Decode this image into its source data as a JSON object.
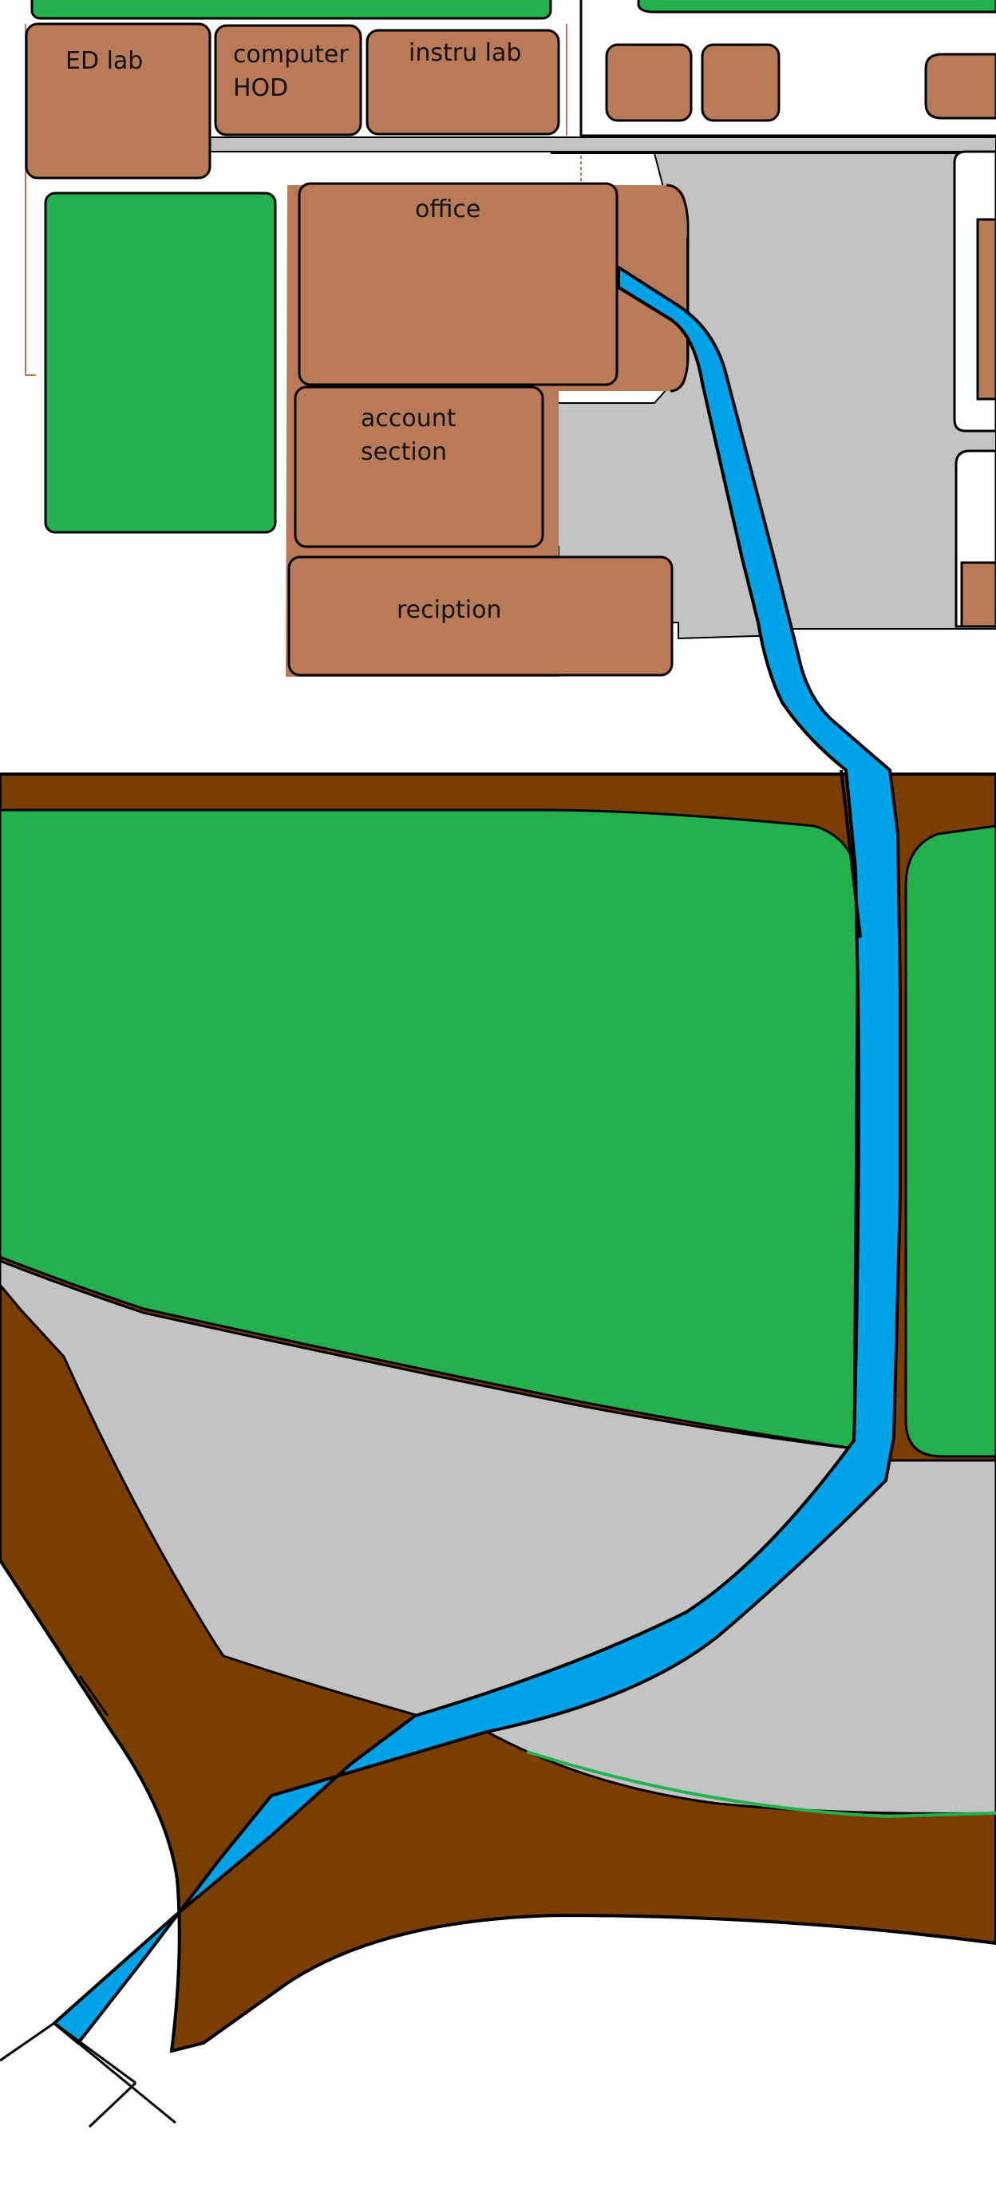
{
  "map": {
    "labels": {
      "ed_lab": "ED lab",
      "computer_hod_line1": "computer",
      "computer_hod_line2": "HOD",
      "instru_lab": "instru lab",
      "office": "office",
      "account_section_line1": "account",
      "account_section_line2": "section",
      "reception": "reciption"
    },
    "colors": {
      "building": "#b97a57",
      "grass": "#22b14c",
      "road": "#7a3f00",
      "paving": "#c3c3c3",
      "route": "#00a2e8",
      "outline": "#000000",
      "background": "#ffffff"
    }
  }
}
